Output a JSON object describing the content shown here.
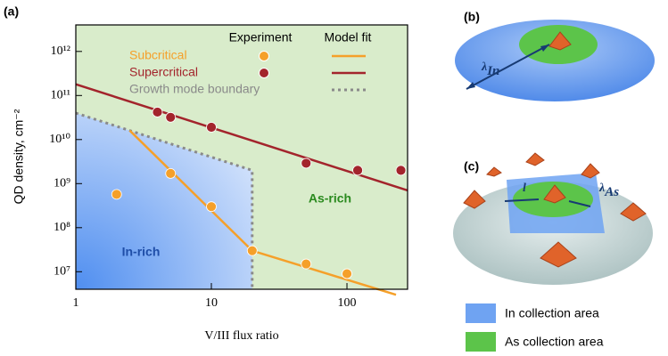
{
  "chart_data": {
    "type": "scatter",
    "panel_label": "(a)",
    "xlabel": "V/III flux ratio",
    "ylabel": "QD density, cm⁻²",
    "log_x": true,
    "log_y": true,
    "xlim": [
      1,
      280
    ],
    "ylim": [
      4000000,
      4000000000000
    ],
    "xticks": [
      1,
      10,
      100
    ],
    "yticks": [
      {
        "value": 10000000,
        "label": "10⁷"
      },
      {
        "value": 100000000,
        "label": "10⁸"
      },
      {
        "value": 1000000000,
        "label": "10⁹"
      },
      {
        "value": 10000000000,
        "label": "10¹⁰"
      },
      {
        "value": 100000000000,
        "label": "10¹¹"
      },
      {
        "value": 1000000000000,
        "label": "10¹²"
      }
    ],
    "legend_headers": [
      "Experiment",
      "Model fit"
    ],
    "series": [
      {
        "name": "Subcritical",
        "color": "#f5a02a",
        "x": [
          2,
          5,
          10,
          20,
          50,
          100
        ],
        "values": [
          570000000,
          1700000000,
          300000000,
          30000000,
          15000000,
          9000000
        ],
        "fit_x": [
          2.5,
          20,
          230
        ],
        "fit_values": [
          16000000000,
          30000000,
          3000000
        ]
      },
      {
        "name": "Supercritical",
        "color": "#a3242c",
        "x": [
          4,
          5,
          10,
          50,
          120,
          250
        ],
        "values": [
          42000000000,
          32000000000,
          19000000000,
          2900000000,
          2000000000,
          2000000000
        ],
        "fit_x": [
          1,
          280
        ],
        "fit_values": [
          180000000000,
          700000000
        ]
      }
    ],
    "boundary": {
      "name": "Growth mode boundary",
      "color": "#8a8a8a",
      "x": [
        1,
        20,
        20
      ],
      "values": [
        40000000000,
        2000000000,
        4000000
      ]
    },
    "annotations": [
      "In-rich",
      "As-rich"
    ]
  },
  "diagram": {
    "panel_b": {
      "label": "(b)",
      "symbol": "λ",
      "subscript": "In"
    },
    "panel_c": {
      "label": "(c)",
      "symbols": [
        "l",
        "λ"
      ],
      "subscript": "As"
    },
    "legend": [
      "In collection area",
      "As collection area"
    ]
  }
}
